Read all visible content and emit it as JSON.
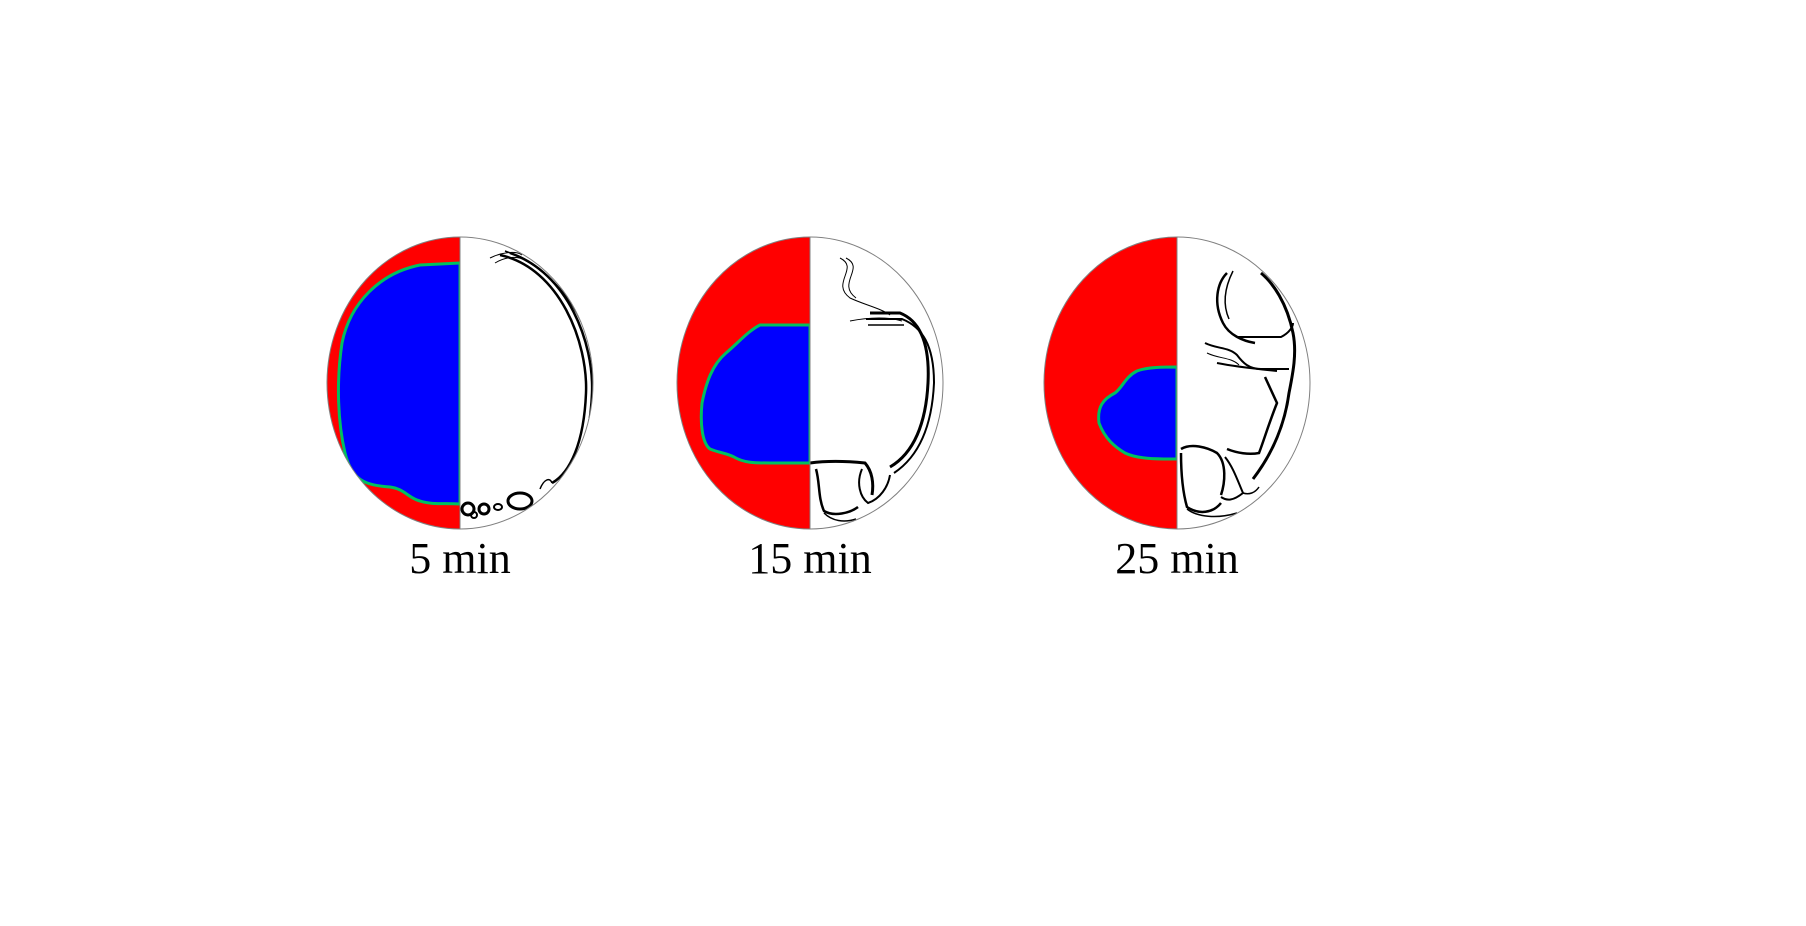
{
  "panels": [
    {
      "caption": "5 min"
    },
    {
      "caption": "15 min"
    },
    {
      "caption": "25 min"
    }
  ],
  "colors": {
    "outer": "#ff0000",
    "inner": "#0000ff",
    "interface": "#00c060",
    "contour": "#000000",
    "background": "#ffffff"
  }
}
